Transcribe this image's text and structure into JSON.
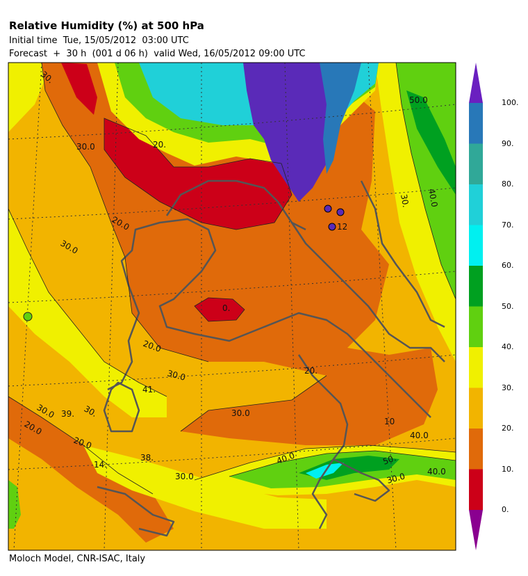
{
  "header": {
    "title": "Relative Humidity (%) at 500 hPa",
    "initial_time": "Initial time  Tue, 15/05/2012  03:00 UTC",
    "forecast": "Forecast  +  30 h  (001 d 06 h)  valid Wed, 16/05/2012 09:00 UTC"
  },
  "footer": {
    "credit": "Moloch Model, CNR-ISAC, Italy"
  },
  "colorbar": {
    "bands": [
      {
        "color": "#cc0018"
      },
      {
        "color": "#e06a0a"
      },
      {
        "color": "#f2b400"
      },
      {
        "color": "#f0f000"
      },
      {
        "color": "#60d010"
      },
      {
        "color": "#00a020"
      },
      {
        "color": "#00f0f0"
      },
      {
        "color": "#20d0d8"
      },
      {
        "color": "#30a898"
      },
      {
        "color": "#2878b8"
      },
      {
        "color": "#5a2ab8"
      }
    ],
    "top_arrow_color": "#6a20c0",
    "bottom_arrow_color": "#8a0090",
    "tick_labels": [
      "100.",
      "90.",
      "80.",
      "70.",
      "60.",
      "50.",
      "40.",
      "30.",
      "20.",
      "10.",
      "0."
    ]
  },
  "contour_labels": [
    "30.",
    "30.0",
    "20.",
    "20.0",
    "30.0",
    "0.",
    "20.0",
    "30.0",
    "41.",
    "39.",
    "30.0",
    "30.",
    "20.0",
    "20.0",
    "14.",
    "38.",
    "30.0",
    "40.0",
    "30.0",
    "10",
    "40.0",
    "50.",
    "30.0",
    "40.0",
    "50.0",
    "30.",
    "40.0",
    "20.",
    "12"
  ]
}
